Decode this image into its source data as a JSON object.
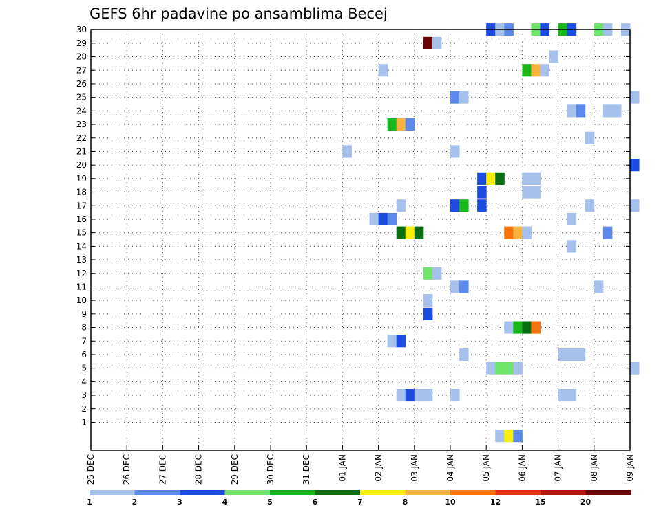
{
  "chart_data": {
    "type": "heatmap",
    "title": "GEFS 6hr padavine po ansamblima Becej",
    "x_tick_labels": [
      "25 DEC",
      "26 DEC",
      "27 DEC",
      "28 DEC",
      "29 DEC",
      "30 DEC",
      "31 DEC",
      "01 JAN",
      "02 JAN",
      "03 JAN",
      "04 JAN",
      "05 JAN",
      "06 JAN",
      "07 JAN",
      "08 JAN",
      "09 JAN"
    ],
    "y_tick_labels": [
      "1",
      "2",
      "3",
      "4",
      "5",
      "6",
      "7",
      "8",
      "9",
      "10",
      "11",
      "12",
      "13",
      "14",
      "15",
      "16",
      "17",
      "18",
      "19",
      "20",
      "21",
      "22",
      "23",
      "24",
      "25",
      "26",
      "27",
      "28",
      "29",
      "30"
    ],
    "x_range_days": [
      0,
      15
    ],
    "y_range_members": [
      0,
      30
    ],
    "grid": true,
    "legend": {
      "placement": "bottom",
      "labels": [
        "1",
        "2",
        "3",
        "4",
        "5",
        "6",
        "7",
        "8",
        "10",
        "12",
        "15",
        "20"
      ],
      "colors": [
        "#a6c1ec",
        "#5d8ae8",
        "#1c4de0",
        "#6fe46a",
        "#1ab71c",
        "#0a6f13",
        "#f8ee0a",
        "#f8b240",
        "#f7730c",
        "#e8340f",
        "#b4180f",
        "#6e0303"
      ]
    },
    "cells": [
      {
        "member": 30,
        "day": 11.0,
        "level": 3
      },
      {
        "member": 30,
        "day": 11.25,
        "level": 1
      },
      {
        "member": 30,
        "day": 11.5,
        "level": 2
      },
      {
        "member": 30,
        "day": 12.25,
        "level": 4
      },
      {
        "member": 30,
        "day": 12.5,
        "level": 3
      },
      {
        "member": 30,
        "day": 13.0,
        "level": 5
      },
      {
        "member": 30,
        "day": 13.25,
        "level": 3
      },
      {
        "member": 30,
        "day": 14.0,
        "level": 4
      },
      {
        "member": 30,
        "day": 14.25,
        "level": 1
      },
      {
        "member": 30,
        "day": 14.75,
        "level": 1
      },
      {
        "member": 29,
        "day": 9.25,
        "level": 12
      },
      {
        "member": 29,
        "day": 9.5,
        "level": 1
      },
      {
        "member": 28,
        "day": 12.75,
        "level": 1
      },
      {
        "member": 27,
        "day": 8.0,
        "level": 1
      },
      {
        "member": 27,
        "day": 12.0,
        "level": 5
      },
      {
        "member": 27,
        "day": 12.25,
        "level": 8
      },
      {
        "member": 27,
        "day": 12.5,
        "level": 1
      },
      {
        "member": 25,
        "day": 10.0,
        "level": 2
      },
      {
        "member": 25,
        "day": 10.25,
        "level": 1
      },
      {
        "member": 25,
        "day": 15.0,
        "level": 1
      },
      {
        "member": 24,
        "day": 13.25,
        "level": 1
      },
      {
        "member": 24,
        "day": 13.5,
        "level": 2
      },
      {
        "member": 24,
        "day": 14.25,
        "level": 1
      },
      {
        "member": 24,
        "day": 14.5,
        "level": 1
      },
      {
        "member": 23,
        "day": 8.25,
        "level": 5
      },
      {
        "member": 23,
        "day": 8.5,
        "level": 8
      },
      {
        "member": 23,
        "day": 8.75,
        "level": 2
      },
      {
        "member": 22,
        "day": 13.75,
        "level": 1
      },
      {
        "member": 21,
        "day": 7.0,
        "level": 1
      },
      {
        "member": 21,
        "day": 10.0,
        "level": 1
      },
      {
        "member": 20,
        "day": 15.0,
        "level": 3
      },
      {
        "member": 19,
        "day": 10.75,
        "level": 3
      },
      {
        "member": 19,
        "day": 11.0,
        "level": 7
      },
      {
        "member": 19,
        "day": 11.25,
        "level": 6
      },
      {
        "member": 19,
        "day": 12.0,
        "level": 1
      },
      {
        "member": 19,
        "day": 12.25,
        "level": 1
      },
      {
        "member": 18,
        "day": 10.75,
        "level": 3
      },
      {
        "member": 18,
        "day": 12.0,
        "level": 1
      },
      {
        "member": 18,
        "day": 12.25,
        "level": 1
      },
      {
        "member": 17,
        "day": 8.5,
        "level": 1
      },
      {
        "member": 17,
        "day": 10.0,
        "level": 3
      },
      {
        "member": 17,
        "day": 10.25,
        "level": 5
      },
      {
        "member": 17,
        "day": 10.75,
        "level": 3
      },
      {
        "member": 17,
        "day": 13.75,
        "level": 1
      },
      {
        "member": 17,
        "day": 15.0,
        "level": 1
      },
      {
        "member": 16,
        "day": 7.75,
        "level": 1
      },
      {
        "member": 16,
        "day": 8.0,
        "level": 3
      },
      {
        "member": 16,
        "day": 8.25,
        "level": 2
      },
      {
        "member": 16,
        "day": 13.25,
        "level": 1
      },
      {
        "member": 15,
        "day": 8.5,
        "level": 6
      },
      {
        "member": 15,
        "day": 8.75,
        "level": 7
      },
      {
        "member": 15,
        "day": 9.0,
        "level": 6
      },
      {
        "member": 15,
        "day": 11.5,
        "level": 9
      },
      {
        "member": 15,
        "day": 11.75,
        "level": 8
      },
      {
        "member": 15,
        "day": 12.0,
        "level": 1
      },
      {
        "member": 15,
        "day": 14.25,
        "level": 2
      },
      {
        "member": 14,
        "day": 13.25,
        "level": 1
      },
      {
        "member": 12,
        "day": 9.25,
        "level": 4
      },
      {
        "member": 12,
        "day": 9.5,
        "level": 1
      },
      {
        "member": 11,
        "day": 10.0,
        "level": 1
      },
      {
        "member": 11,
        "day": 10.25,
        "level": 2
      },
      {
        "member": 11,
        "day": 14.0,
        "level": 1
      },
      {
        "member": 10,
        "day": 9.25,
        "level": 1
      },
      {
        "member": 9,
        "day": 9.25,
        "level": 3
      },
      {
        "member": 8,
        "day": 11.5,
        "level": 1
      },
      {
        "member": 8,
        "day": 11.75,
        "level": 5
      },
      {
        "member": 8,
        "day": 12.0,
        "level": 6
      },
      {
        "member": 8,
        "day": 12.25,
        "level": 9
      },
      {
        "member": 7,
        "day": 8.25,
        "level": 1
      },
      {
        "member": 7,
        "day": 8.5,
        "level": 3
      },
      {
        "member": 6,
        "day": 10.25,
        "level": 1
      },
      {
        "member": 6,
        "day": 13.0,
        "level": 1
      },
      {
        "member": 6,
        "day": 13.25,
        "level": 1
      },
      {
        "member": 6,
        "day": 13.5,
        "level": 1
      },
      {
        "member": 5,
        "day": 11.0,
        "level": 1
      },
      {
        "member": 5,
        "day": 11.25,
        "level": 4
      },
      {
        "member": 5,
        "day": 11.5,
        "level": 4
      },
      {
        "member": 5,
        "day": 11.75,
        "level": 1
      },
      {
        "member": 5,
        "day": 15.0,
        "level": 1
      },
      {
        "member": 3,
        "day": 8.5,
        "level": 1
      },
      {
        "member": 3,
        "day": 8.75,
        "level": 3
      },
      {
        "member": 3,
        "day": 9.0,
        "level": 1
      },
      {
        "member": 3,
        "day": 9.25,
        "level": 1
      },
      {
        "member": 3,
        "day": 10.0,
        "level": 1
      },
      {
        "member": 3,
        "day": 13.0,
        "level": 1
      },
      {
        "member": 3,
        "day": 13.25,
        "level": 1
      },
      {
        "member": 0,
        "day": 11.25,
        "level": 1
      },
      {
        "member": 0,
        "day": 11.5,
        "level": 7
      },
      {
        "member": 0,
        "day": 11.75,
        "level": 2
      }
    ]
  }
}
